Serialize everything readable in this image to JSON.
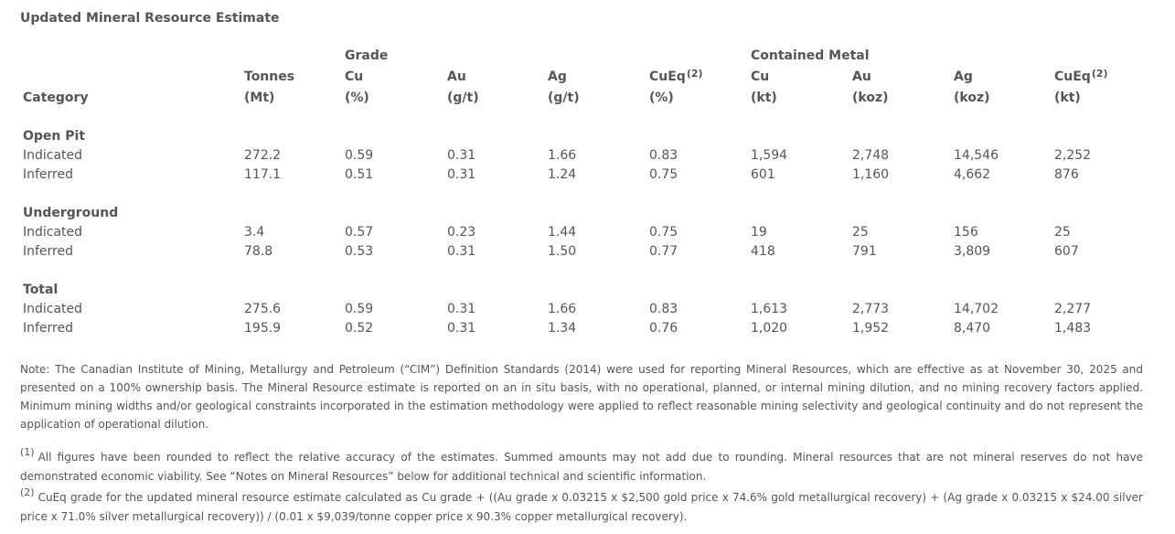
{
  "title": "Updated Mineral Resource Estimate",
  "header": {
    "group_grade": "Grade",
    "group_contained": "Contained Metal",
    "category": "Category",
    "tonnes": {
      "name": "Tonnes",
      "unit": "(Mt)"
    },
    "cu_grade": {
      "name": "Cu",
      "unit": "(%)"
    },
    "au_grade": {
      "name": "Au",
      "unit": "(g/t)"
    },
    "ag_grade": {
      "name": "Ag",
      "unit": "(g/t)"
    },
    "cueq_grade": {
      "name": "CuEq",
      "sup": "(2)",
      "unit": "(%)"
    },
    "cu_metal": {
      "name": "Cu",
      "unit": "(kt)"
    },
    "au_metal": {
      "name": "Au",
      "unit": "(koz)"
    },
    "ag_metal": {
      "name": "Ag",
      "unit": "(koz)"
    },
    "cueq_metal": {
      "name": "CuEq",
      "sup": "(2)",
      "unit": "(kt)"
    }
  },
  "sections": [
    {
      "name": "Open Pit",
      "rows": [
        {
          "category": "Indicated",
          "values": [
            "272.2",
            "0.59",
            "0.31",
            "1.66",
            "0.83",
            "1,594",
            "2,748",
            "14,546",
            "2,252"
          ]
        },
        {
          "category": "Inferred",
          "values": [
            "117.1",
            "0.51",
            "0.31",
            "1.24",
            "0.75",
            "601",
            "1,160",
            "4,662",
            "876"
          ]
        }
      ]
    },
    {
      "name": "Underground",
      "rows": [
        {
          "category": "Indicated",
          "values": [
            "3.4",
            "0.57",
            "0.23",
            "1.44",
            "0.75",
            "19",
            "25",
            "156",
            "25"
          ]
        },
        {
          "category": "Inferred",
          "values": [
            "78.8",
            "0.53",
            "0.31",
            "1.50",
            "0.77",
            "418",
            "791",
            "3,809",
            "607"
          ]
        }
      ]
    },
    {
      "name": "Total",
      "rows": [
        {
          "category": "Indicated",
          "values": [
            "275.6",
            "0.59",
            "0.31",
            "1.66",
            "0.83",
            "1,613",
            "2,773",
            "14,702",
            "2,277"
          ]
        },
        {
          "category": "Inferred",
          "values": [
            "195.9",
            "0.52",
            "0.31",
            "1.34",
            "0.76",
            "1,020",
            "1,952",
            "8,470",
            "1,483"
          ]
        }
      ]
    }
  ],
  "note": "Note: The Canadian Institute of Mining, Metallurgy and Petroleum (“CIM”) Definition Standards (2014) were used for reporting Mineral Resources, which are effective as at November 30, 2025 and presented on a 100% ownership basis. The Mineral Resource estimate is reported on an in situ basis, with no operational, planned, or internal mining dilution, and no mining recovery factors applied. Minimum mining widths and/or geological constraints incorporated in the estimation methodology were applied to reflect reasonable mining selectivity and geological continuity and do not represent the application of operational dilution.",
  "footnotes": [
    {
      "mark": "(1)",
      "text": "All figures have been rounded to reflect the relative accuracy of the estimates. Summed amounts may not add due to rounding. Mineral resources that are not mineral reserves do not have demonstrated economic viability. See “Notes on Mineral Resources” below for additional technical and scientific information."
    },
    {
      "mark": "(2)",
      "text": "CuEq grade for the updated mineral resource estimate calculated as Cu grade + ((Au grade x 0.03215 x $2,500 gold price x 74.6% gold metallurgical recovery) + (Ag grade x 0.03215 x $24.00 silver price x 71.0% silver metallurgical recovery)) / (0.01 x $9,039/tonne copper price x 90.3% copper metallurgical recovery)."
    }
  ]
}
